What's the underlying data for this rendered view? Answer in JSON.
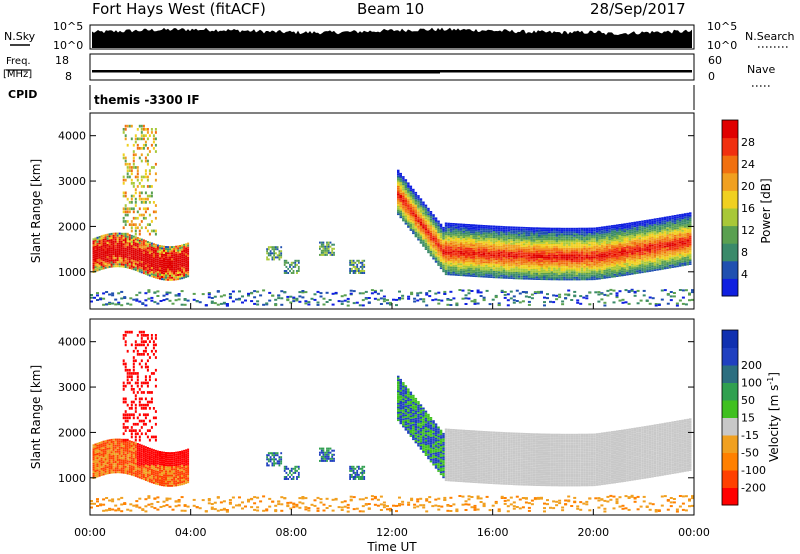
{
  "header": {
    "station": "Fort Hays West (fitACF)",
    "beam": "Beam 10",
    "date": "28/Sep/2017"
  },
  "side_labels": {
    "nsky": "N.Sky",
    "freq_line1": "Freq.",
    "freq_line2": "[MHz]",
    "cpid": "CPID",
    "nsearch": "N.Search",
    "nave": "Nave"
  },
  "colors": {
    "power_scale": [
      "#1020e0",
      "#2050b0",
      "#3a8a6a",
      "#5aa050",
      "#a8c838",
      "#f0d020",
      "#f0a020",
      "#f07010",
      "#f03010",
      "#e00000"
    ],
    "velocity_scale": [
      "#ff0000",
      "#ff4000",
      "#ff8000",
      "#f0a020",
      "#c8c8c8",
      "#40c020",
      "#30a050",
      "#2c6e80",
      "#2040c0",
      "#1030b0"
    ]
  },
  "chart_data": [
    {
      "type": "line",
      "name": "nsky-nsearch",
      "left_ticks": [
        "10^5",
        "10^0"
      ],
      "right_ticks": [
        "10^5",
        "10^0"
      ],
      "left_label": "N.Sky",
      "right_label": "N.Search"
    },
    {
      "type": "line",
      "name": "freq-nave",
      "left_ticks": [
        "18",
        "8"
      ],
      "right_ticks": [
        "60",
        "0"
      ],
      "left_label": "Freq. [MHz]",
      "right_label": "Nave"
    },
    {
      "type": "table",
      "name": "cpid",
      "text": "themis -3300 IF"
    },
    {
      "type": "heatmap",
      "name": "power",
      "ylabel": "Slant Range [km]",
      "yticks": [
        "1000",
        "2000",
        "3000",
        "4000"
      ],
      "ylim": [
        180,
        4500
      ],
      "xlim": [
        0,
        24
      ],
      "colorbar_label": "Power [dB]",
      "colorbar_ticks": [
        "4",
        "8",
        "12",
        "16",
        "20",
        "24",
        "28"
      ],
      "colorbar_range": [
        0,
        32
      ]
    },
    {
      "type": "heatmap",
      "name": "velocity",
      "ylabel": "Slant Range [km]",
      "yticks": [
        "1000",
        "2000",
        "3000",
        "4000"
      ],
      "ylim": [
        180,
        4500
      ],
      "xlim": [
        0,
        24
      ],
      "xlabel": "Time UT",
      "xticks": [
        "00:00",
        "04:00",
        "08:00",
        "12:00",
        "16:00",
        "20:00",
        "00:00"
      ],
      "colorbar_label_main": "Velocity [m s",
      "colorbar_label_sup": "-1",
      "colorbar_label_end": "]",
      "colorbar_ticks": [
        "-200",
        "-100",
        "-50",
        "-15",
        "15",
        "50",
        "100",
        "200"
      ]
    }
  ]
}
